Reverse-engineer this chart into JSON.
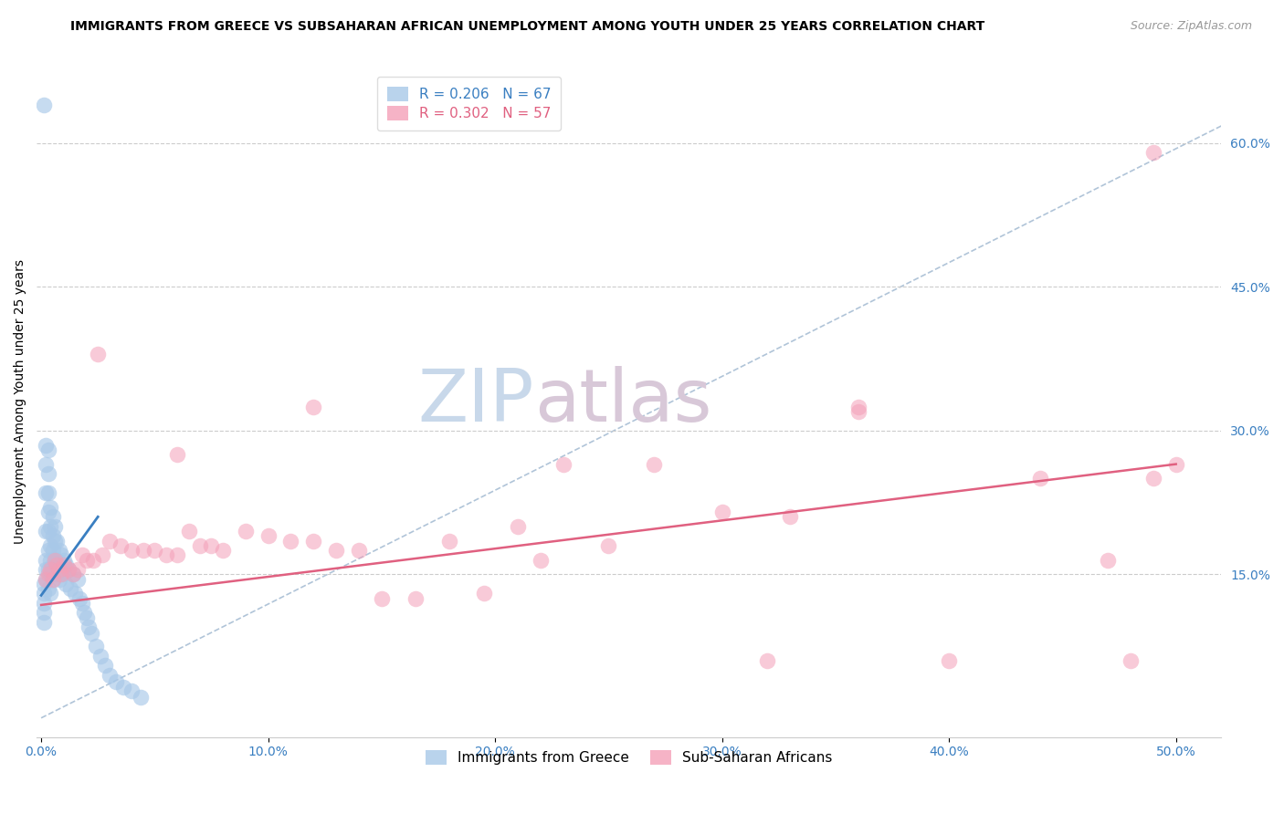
{
  "title": "IMMIGRANTS FROM GREECE VS SUBSAHARAN AFRICAN UNEMPLOYMENT AMONG YOUTH UNDER 25 YEARS CORRELATION CHART",
  "source": "Source: ZipAtlas.com",
  "ylabel": "Unemployment Among Youth under 25 years",
  "R_blue": 0.206,
  "N_blue": 67,
  "R_pink": 0.302,
  "N_pink": 57,
  "color_blue": "#a8c8e8",
  "color_pink": "#f4a0b8",
  "color_blue_line": "#3a7fc1",
  "color_pink_line": "#e06080",
  "color_dashed_line": "#b0c4d8",
  "watermark_color": "#ccd9ea",
  "xlim": [
    -0.002,
    0.52
  ],
  "ylim": [
    -0.02,
    0.68
  ],
  "x_tick_vals": [
    0.0,
    0.1,
    0.2,
    0.3,
    0.4,
    0.5
  ],
  "x_tick_labels": [
    "0.0%",
    "10.0%",
    "20.0%",
    "30.0%",
    "40.0%",
    "50.0%"
  ],
  "y_tick_vals": [
    0.15,
    0.3,
    0.45,
    0.6
  ],
  "y_tick_labels": [
    "15.0%",
    "30.0%",
    "45.0%",
    "60.0%"
  ],
  "blue_scatter_x": [
    0.001,
    0.001,
    0.001,
    0.001,
    0.001,
    0.001,
    0.002,
    0.002,
    0.002,
    0.002,
    0.002,
    0.002,
    0.002,
    0.003,
    0.003,
    0.003,
    0.003,
    0.003,
    0.003,
    0.003,
    0.003,
    0.004,
    0.004,
    0.004,
    0.004,
    0.004,
    0.004,
    0.005,
    0.005,
    0.005,
    0.005,
    0.005,
    0.006,
    0.006,
    0.006,
    0.006,
    0.007,
    0.007,
    0.007,
    0.008,
    0.008,
    0.008,
    0.009,
    0.009,
    0.01,
    0.01,
    0.011,
    0.011,
    0.012,
    0.013,
    0.014,
    0.015,
    0.016,
    0.017,
    0.018,
    0.019,
    0.02,
    0.021,
    0.022,
    0.024,
    0.026,
    0.028,
    0.03,
    0.033,
    0.036,
    0.04,
    0.044
  ],
  "blue_scatter_y": [
    0.64,
    0.14,
    0.13,
    0.12,
    0.11,
    0.1,
    0.285,
    0.265,
    0.235,
    0.195,
    0.165,
    0.155,
    0.145,
    0.28,
    0.255,
    0.235,
    0.215,
    0.195,
    0.175,
    0.155,
    0.135,
    0.22,
    0.2,
    0.18,
    0.165,
    0.15,
    0.13,
    0.21,
    0.19,
    0.175,
    0.16,
    0.145,
    0.2,
    0.185,
    0.165,
    0.15,
    0.185,
    0.165,
    0.15,
    0.175,
    0.16,
    0.145,
    0.17,
    0.155,
    0.165,
    0.15,
    0.16,
    0.14,
    0.155,
    0.135,
    0.15,
    0.13,
    0.145,
    0.125,
    0.12,
    0.11,
    0.105,
    0.095,
    0.088,
    0.075,
    0.065,
    0.055,
    0.045,
    0.038,
    0.032,
    0.028,
    0.022
  ],
  "pink_scatter_x": [
    0.002,
    0.003,
    0.004,
    0.005,
    0.006,
    0.007,
    0.008,
    0.009,
    0.01,
    0.012,
    0.014,
    0.016,
    0.018,
    0.02,
    0.023,
    0.027,
    0.03,
    0.035,
    0.04,
    0.045,
    0.05,
    0.055,
    0.06,
    0.065,
    0.07,
    0.075,
    0.08,
    0.09,
    0.1,
    0.11,
    0.12,
    0.13,
    0.14,
    0.15,
    0.165,
    0.18,
    0.195,
    0.21,
    0.23,
    0.25,
    0.27,
    0.3,
    0.33,
    0.36,
    0.4,
    0.44,
    0.47,
    0.49,
    0.5,
    0.025,
    0.06,
    0.12,
    0.22,
    0.32,
    0.48,
    0.36,
    0.49
  ],
  "pink_scatter_y": [
    0.145,
    0.15,
    0.155,
    0.145,
    0.165,
    0.16,
    0.155,
    0.15,
    0.16,
    0.155,
    0.15,
    0.155,
    0.17,
    0.165,
    0.165,
    0.17,
    0.185,
    0.18,
    0.175,
    0.175,
    0.175,
    0.17,
    0.17,
    0.195,
    0.18,
    0.18,
    0.175,
    0.195,
    0.19,
    0.185,
    0.185,
    0.175,
    0.175,
    0.125,
    0.125,
    0.185,
    0.13,
    0.2,
    0.265,
    0.18,
    0.265,
    0.215,
    0.21,
    0.32,
    0.06,
    0.25,
    0.165,
    0.25,
    0.265,
    0.38,
    0.275,
    0.325,
    0.165,
    0.06,
    0.06,
    0.325,
    0.59
  ],
  "blue_line_x": [
    0.0,
    0.025
  ],
  "blue_line_y": [
    0.128,
    0.21
  ],
  "pink_line_x": [
    0.0,
    0.5
  ],
  "pink_line_y": [
    0.118,
    0.265
  ],
  "dash_line_x": [
    0.0,
    0.53
  ],
  "dash_line_y": [
    0.0,
    0.63
  ]
}
